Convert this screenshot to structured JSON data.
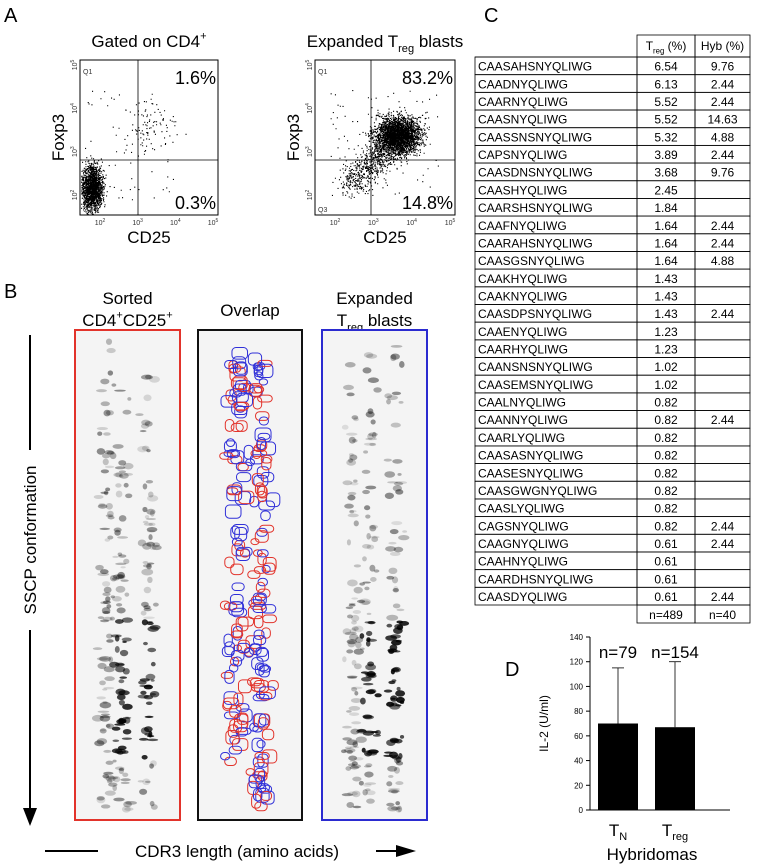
{
  "panel_labels": {
    "a": "A",
    "b": "B",
    "c": "C",
    "d": "D"
  },
  "flow": {
    "tick_base": "10",
    "x_tick_exps": [
      "2",
      "3",
      "4",
      "5"
    ],
    "y_tick_exps": [
      "2",
      "3",
      "4",
      "5"
    ],
    "x_label": "CD25",
    "y_label": "Foxp3",
    "gate_labels": [
      "Q1",
      "Q3"
    ],
    "plots": [
      {
        "title": [
          {
            "text": "Gated on CD4"
          },
          {
            "text": "+",
            "pos": "super"
          }
        ],
        "upper_right": "1.6%",
        "lower_right": "0.3%"
      },
      {
        "title": [
          {
            "text": "Expanded T"
          },
          {
            "text": "reg",
            "pos": "sub"
          },
          {
            "text": " blasts"
          }
        ],
        "upper_right": "83.2%",
        "lower_right": "14.8%"
      }
    ]
  },
  "sscp": {
    "lanes": [
      {
        "title": [
          [
            {
              "text": "Sorted"
            }
          ],
          [
            {
              "text": "CD4"
            },
            {
              "text": "+",
              "pos": "super"
            },
            {
              "text": "CD25"
            },
            {
              "text": "+",
              "pos": "super"
            }
          ]
        ],
        "color": "#e2332b"
      },
      {
        "title": [
          [
            {
              "text": "Overlap"
            }
          ]
        ],
        "color": "#111111"
      },
      {
        "title": [
          [
            {
              "text": "Expanded"
            }
          ],
          [
            {
              "text": "T"
            },
            {
              "text": "reg",
              "pos": "sub"
            },
            {
              "text": " blasts"
            }
          ]
        ],
        "color": "#2b2bd0"
      }
    ],
    "y_label": "SSCP conformation",
    "x_label": "CDR3 length (amino acids)"
  },
  "table": {
    "columns": [
      [
        {
          "text": "T"
        },
        {
          "text": "reg",
          "pos": "sub"
        },
        {
          "text": " (%)"
        }
      ],
      [
        {
          "text": "Hyb (%)"
        }
      ]
    ],
    "rows": [
      [
        "CAASAHSNYQLIWG",
        "6.54",
        "9.76"
      ],
      [
        "CAADNYQLIWG",
        "6.13",
        "2.44"
      ],
      [
        "CAARNYQLIWG",
        "5.52",
        "2.44"
      ],
      [
        "CAASNYQLIWG",
        "5.52",
        "14.63"
      ],
      [
        "CAASSNSNYQLIWG",
        "5.32",
        "4.88"
      ],
      [
        "CAPSNYQLIWG",
        "3.89",
        "2.44"
      ],
      [
        "CAASDNSNYQLIWG",
        "3.68",
        "9.76"
      ],
      [
        "CAASHYQLIWG",
        "2.45",
        null
      ],
      [
        "CAARSHSNYQLIWG",
        "1.84",
        null
      ],
      [
        "CAAFNYQLIWG",
        "1.64",
        "2.44"
      ],
      [
        "CAARAHSNYQLIWG",
        "1.64",
        "2.44"
      ],
      [
        "CAASGSNYQLIWG",
        "1.64",
        "4.88"
      ],
      [
        "CAAKHYQLIWG",
        "1.43",
        null
      ],
      [
        "CAAKNYQLIWG",
        "1.43",
        null
      ],
      [
        "CAASDPSNYQLIWG",
        "1.43",
        "2.44"
      ],
      [
        "CAAENYQLIWG",
        "1.23",
        null
      ],
      [
        "CAARHYQLIWG",
        "1.23",
        null
      ],
      [
        "CAANSNSNYQLIWG",
        "1.02",
        null
      ],
      [
        "CAASEMSNYQLIWG",
        "1.02",
        null
      ],
      [
        "CAALNYQLIWG",
        "0.82",
        null
      ],
      [
        "CAANNYQLIWG",
        "0.82",
        "2.44"
      ],
      [
        "CAARLYQLIWG",
        "0.82",
        null
      ],
      [
        "CAASASNYQLIWG",
        "0.82",
        null
      ],
      [
        "CAASESNYQLIWG",
        "0.82",
        null
      ],
      [
        "CAASGWGNYQLIWG",
        "0.82",
        null
      ],
      [
        "CAASLYQLIWG",
        "0.82",
        null
      ],
      [
        "CAGSNYQLIWG",
        "0.82",
        "2.44"
      ],
      [
        "CAAGNYQLIWG",
        "0.61",
        "2.44"
      ],
      [
        "CAAHNYQLIWG",
        "0.61",
        null
      ],
      [
        "CAARDHSNYQLIWG",
        "0.61",
        null
      ],
      [
        "CAASDYQLIWG",
        "0.61",
        "2.44"
      ]
    ],
    "footer": [
      "n=489",
      "n=40"
    ]
  },
  "chart_data": {
    "type": "bar",
    "y_label": "IL-2 (U/ml)",
    "x_label": "Hybridomas",
    "categories": [
      "T",
      "T"
    ],
    "category_subscripts": [
      "N",
      "reg"
    ],
    "values": [
      70,
      67
    ],
    "errors": [
      45,
      53
    ],
    "annotations": [
      "n=79",
      "n=154"
    ],
    "color": "#000000",
    "ylim": [
      0,
      140
    ],
    "yticks": [
      0,
      20,
      40,
      60,
      80,
      100,
      120,
      140
    ]
  }
}
